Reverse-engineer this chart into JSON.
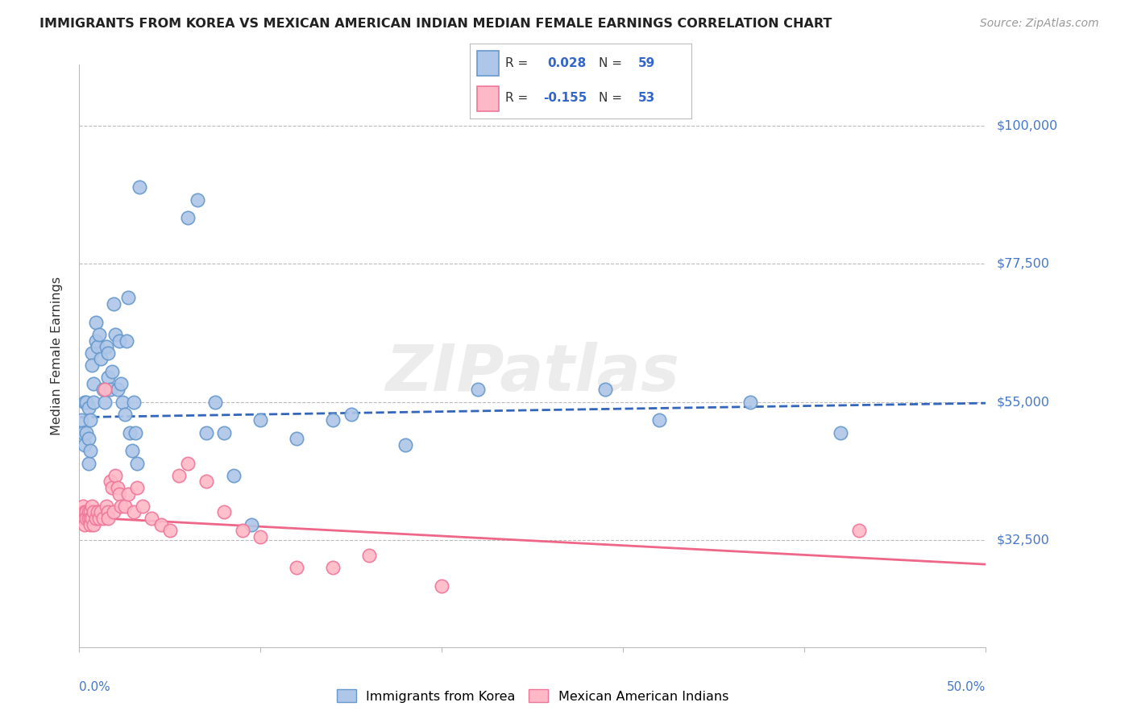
{
  "title": "IMMIGRANTS FROM KOREA VS MEXICAN AMERICAN INDIAN MEDIAN FEMALE EARNINGS CORRELATION CHART",
  "source": "Source: ZipAtlas.com",
  "ylabel": "Median Female Earnings",
  "y_ticks": [
    32500,
    55000,
    77500,
    100000
  ],
  "y_tick_labels": [
    "$32,500",
    "$55,000",
    "$77,500",
    "$100,000"
  ],
  "xlim": [
    0.0,
    0.5
  ],
  "ylim": [
    15000,
    110000
  ],
  "korea_color_edge": "#6699CC",
  "korea_color_fill": "#AEC6E8",
  "mexico_color_fill": "#FFB8C6",
  "mexico_color_edge": "#EE7799",
  "trend_korea_color": "#3366BB",
  "trend_mexico_color": "#EE6688",
  "R_korea": "0.028",
  "N_korea": "59",
  "R_mexico": "-0.155",
  "N_mexico": "53",
  "watermark": "ZIPatlas",
  "legend_label_korea": "Immigrants from Korea",
  "legend_label_mexico": "Mexican American Indians",
  "korea_x": [
    0.001,
    0.002,
    0.003,
    0.003,
    0.004,
    0.004,
    0.005,
    0.005,
    0.005,
    0.006,
    0.006,
    0.007,
    0.007,
    0.008,
    0.008,
    0.009,
    0.009,
    0.01,
    0.011,
    0.012,
    0.013,
    0.014,
    0.015,
    0.016,
    0.016,
    0.017,
    0.018,
    0.019,
    0.02,
    0.021,
    0.022,
    0.023,
    0.024,
    0.025,
    0.026,
    0.027,
    0.028,
    0.029,
    0.03,
    0.031,
    0.032,
    0.033,
    0.06,
    0.065,
    0.07,
    0.075,
    0.08,
    0.085,
    0.095,
    0.1,
    0.12,
    0.14,
    0.15,
    0.18,
    0.22,
    0.29,
    0.32,
    0.37,
    0.42
  ],
  "korea_y": [
    52000,
    50000,
    55000,
    48000,
    50000,
    55000,
    54000,
    49000,
    45000,
    52000,
    47000,
    63000,
    61000,
    58000,
    55000,
    68000,
    65000,
    64000,
    66000,
    62000,
    57000,
    55000,
    64000,
    63000,
    59000,
    57000,
    60000,
    71000,
    66000,
    57000,
    65000,
    58000,
    55000,
    53000,
    65000,
    72000,
    50000,
    47000,
    55000,
    50000,
    45000,
    90000,
    85000,
    88000,
    50000,
    55000,
    50000,
    43000,
    35000,
    52000,
    49000,
    52000,
    53000,
    48000,
    57000,
    57000,
    52000,
    55000,
    50000
  ],
  "mexico_x": [
    0.001,
    0.001,
    0.002,
    0.002,
    0.003,
    0.003,
    0.003,
    0.004,
    0.004,
    0.005,
    0.005,
    0.006,
    0.006,
    0.006,
    0.007,
    0.007,
    0.008,
    0.008,
    0.009,
    0.01,
    0.011,
    0.012,
    0.013,
    0.014,
    0.015,
    0.016,
    0.016,
    0.017,
    0.018,
    0.019,
    0.02,
    0.021,
    0.022,
    0.023,
    0.025,
    0.027,
    0.03,
    0.032,
    0.035,
    0.04,
    0.045,
    0.05,
    0.055,
    0.06,
    0.07,
    0.08,
    0.09,
    0.1,
    0.12,
    0.14,
    0.16,
    0.2,
    0.43
  ],
  "mexico_y": [
    37000,
    36000,
    38000,
    36000,
    37000,
    36000,
    35000,
    37000,
    36000,
    37000,
    36000,
    37000,
    36000,
    35000,
    38000,
    36000,
    37000,
    35000,
    36000,
    37000,
    36000,
    37000,
    36000,
    57000,
    38000,
    37000,
    36000,
    42000,
    41000,
    37000,
    43000,
    41000,
    40000,
    38000,
    38000,
    40000,
    37000,
    41000,
    38000,
    36000,
    35000,
    34000,
    43000,
    45000,
    42000,
    37000,
    34000,
    33000,
    28000,
    28000,
    30000,
    25000,
    34000
  ]
}
